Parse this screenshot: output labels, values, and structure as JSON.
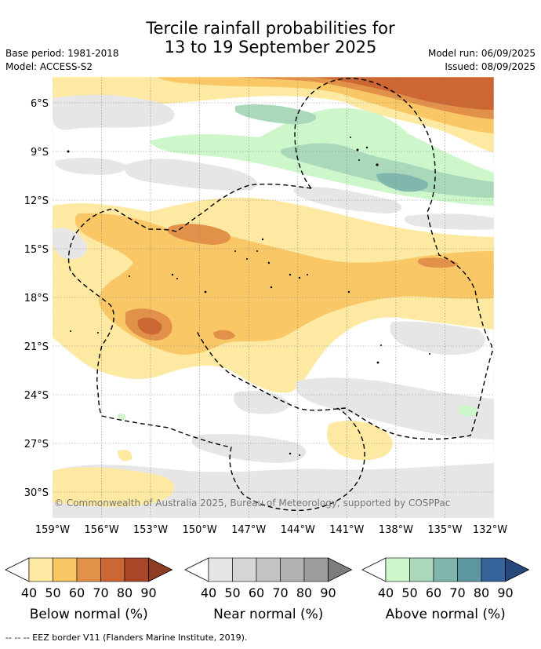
{
  "title": {
    "line1": "Tercile rainfall probabilities for",
    "line2": "13 to 19 September 2025"
  },
  "meta": {
    "base_period": "Base period: 1981-2018",
    "model": "Model: ACCESS-S2",
    "model_run": "Model run: 06/09/2025",
    "issued": "Issued: 08/09/2025"
  },
  "map": {
    "lat_labels": [
      "6°S",
      "9°S",
      "12°S",
      "15°S",
      "18°S",
      "21°S",
      "24°S",
      "27°S",
      "30°S"
    ],
    "lon_labels": [
      "159°W",
      "156°W",
      "153°W",
      "150°W",
      "147°W",
      "144°W",
      "141°W",
      "138°W",
      "135°W",
      "132°W"
    ],
    "credit": "© Commonwealth of Australia 2025, Bureau of Meteorology, supported by COSPPac"
  },
  "colorbars": [
    {
      "name": "below-normal",
      "title": "Below normal (%)",
      "ticks": [
        "40",
        "50",
        "60",
        "70",
        "80",
        "90"
      ],
      "colors": [
        "#fde9a1",
        "#f9c766",
        "#e19149",
        "#cc6632",
        "#a84628",
        "#8c3d23"
      ]
    },
    {
      "name": "near-normal",
      "title": "Near normal (%)",
      "ticks": [
        "40",
        "50",
        "60",
        "70",
        "80",
        "90"
      ],
      "colors": [
        "#e6e6e6",
        "#d5d5d5",
        "#c3c3c3",
        "#b1b1b1",
        "#9d9d9d",
        "#7d7d7d"
      ]
    },
    {
      "name": "above-normal",
      "title": "Above normal (%)",
      "ticks": [
        "40",
        "50",
        "60",
        "70",
        "80",
        "90"
      ],
      "colors": [
        "#cdf7cb",
        "#a9d8bb",
        "#80b6ac",
        "#5d98a2",
        "#35649b",
        "#24497a"
      ]
    }
  ],
  "footer": "-- -- -- EEZ border V11 (Flanders Marine Institute, 2019)."
}
